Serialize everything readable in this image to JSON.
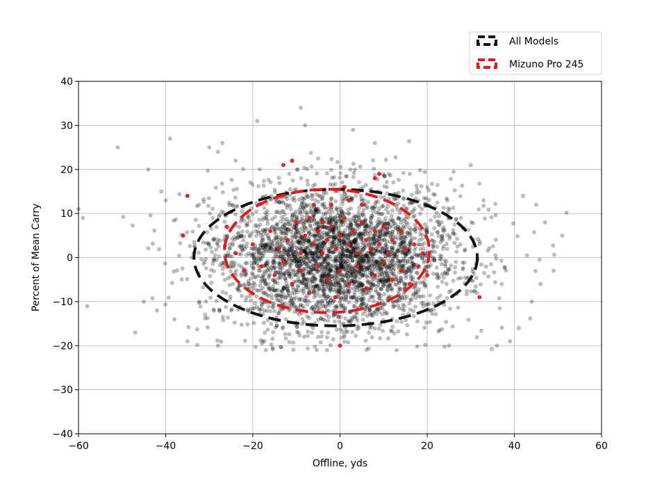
{
  "chart_data": {
    "type": "scatter",
    "title": "",
    "xlabel": "Offline, yds",
    "ylabel": "Percent of Mean Carry",
    "xlim": [
      -60,
      60
    ],
    "ylim": [
      -40,
      40
    ],
    "xticks": [
      -60,
      -40,
      -20,
      0,
      20,
      40,
      60
    ],
    "yticks": [
      -40,
      -30,
      -20,
      -10,
      0,
      10,
      20,
      30,
      40
    ],
    "grid": true,
    "legend_position": "upper-right-outside",
    "series": [
      {
        "name": "All Models",
        "marker_color": "#000000",
        "marker_alpha": 0.25,
        "ellipse_color": "#111111",
        "ellipse": {
          "center": [
            -1,
            0
          ],
          "half_width": 32.5,
          "half_height": 15.5
        },
        "point_count_estimate": 3500,
        "spread_sd": [
          14,
          8
        ],
        "sample_points": [
          [
            -60,
            11
          ],
          [
            -59,
            9
          ],
          [
            -58,
            -11
          ],
          [
            -51,
            25
          ],
          [
            -44,
            20
          ],
          [
            -41,
            15
          ],
          [
            -40,
            13
          ],
          [
            -39,
            27
          ],
          [
            -35,
            -19
          ],
          [
            -30,
            25
          ],
          [
            -28,
            24
          ],
          [
            -27,
            26
          ],
          [
            -9,
            34
          ],
          [
            -8,
            30
          ],
          [
            -19,
            31
          ],
          [
            3,
            29
          ],
          [
            8,
            26
          ],
          [
            16,
            19
          ],
          [
            30,
            21
          ],
          [
            42,
            14
          ],
          [
            45,
            12
          ],
          [
            47,
            8
          ],
          [
            51,
            5
          ],
          [
            49,
            -3
          ],
          [
            -47,
            -17
          ],
          [
            -45,
            -10
          ],
          [
            -42,
            -12
          ],
          [
            -38,
            -14
          ],
          [
            -28,
            -20
          ],
          [
            -17,
            -21
          ],
          [
            -3,
            -21
          ],
          [
            13,
            -21
          ],
          [
            25,
            -20
          ],
          [
            36,
            -20
          ],
          [
            39,
            -19
          ],
          [
            41,
            -16
          ],
          [
            44,
            -10
          ],
          [
            46,
            -6
          ]
        ]
      },
      {
        "name": "Mizuno Pro 245",
        "marker_color": "#e31a1c",
        "marker_alpha": 0.95,
        "ellipse_color": "#e31a1c",
        "ellipse": {
          "center": [
            -3,
            1.5
          ],
          "half_width": 23.5,
          "half_height": 14
        },
        "points": [
          [
            -35,
            14
          ],
          [
            -36,
            5
          ],
          [
            -13,
            21
          ],
          [
            -11,
            22
          ],
          [
            9,
            19
          ],
          [
            1,
            16
          ],
          [
            8,
            18
          ],
          [
            -26,
            7
          ],
          [
            -20,
            3
          ],
          [
            -16,
            6
          ],
          [
            -14,
            2
          ],
          [
            -12,
            4
          ],
          [
            -10,
            8
          ],
          [
            -9,
            1
          ],
          [
            -8,
            5
          ],
          [
            -7,
            9
          ],
          [
            -6,
            3
          ],
          [
            -5,
            6
          ],
          [
            -4,
            1
          ],
          [
            -3,
            4
          ],
          [
            -2,
            7
          ],
          [
            -1,
            2
          ],
          [
            0,
            5
          ],
          [
            1,
            9
          ],
          [
            2,
            3
          ],
          [
            3,
            6
          ],
          [
            4,
            1
          ],
          [
            5,
            8
          ],
          [
            6,
            4
          ],
          [
            7,
            2
          ],
          [
            8,
            6
          ],
          [
            9,
            3
          ],
          [
            10,
            7
          ],
          [
            11,
            1
          ],
          [
            12,
            4
          ],
          [
            14,
            6
          ],
          [
            15,
            2
          ],
          [
            17,
            3
          ],
          [
            19,
            1
          ],
          [
            -18,
            -2
          ],
          [
            -15,
            -4
          ],
          [
            -13,
            -1
          ],
          [
            -11,
            -6
          ],
          [
            -9,
            -3
          ],
          [
            -7,
            -8
          ],
          [
            -5,
            -2
          ],
          [
            -3,
            -5
          ],
          [
            -1,
            -9
          ],
          [
            0,
            -3
          ],
          [
            2,
            -6
          ],
          [
            4,
            -2
          ],
          [
            6,
            -7
          ],
          [
            8,
            -4
          ],
          [
            10,
            -1
          ],
          [
            12,
            -5
          ],
          [
            14,
            -3
          ],
          [
            16,
            -6
          ],
          [
            18,
            -2
          ],
          [
            20,
            -4
          ],
          [
            -22,
            -3
          ],
          [
            -24,
            1
          ],
          [
            32,
            -9
          ],
          [
            0,
            -20
          ],
          [
            -4,
            8
          ],
          [
            -2,
            12
          ],
          [
            2,
            13
          ],
          [
            5,
            12
          ],
          [
            -6,
            12
          ]
        ]
      }
    ]
  }
}
